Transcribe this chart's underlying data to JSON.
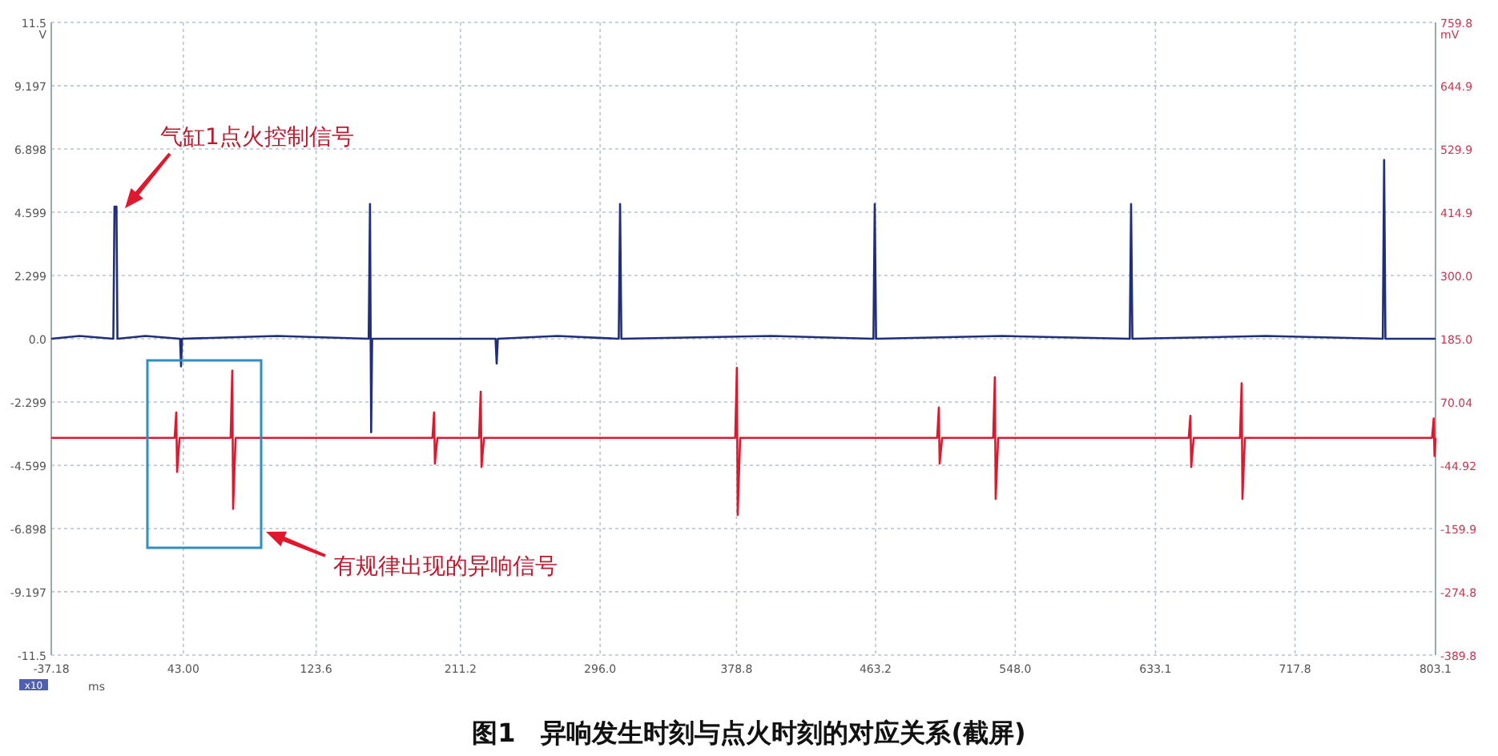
{
  "chart_data": {
    "type": "line",
    "title": "图1　异响发生时刻与点火时刻的对应关系(截屏)",
    "xlabel": "ms",
    "ylabel": "V",
    "y2label": "mV",
    "xlim": [
      -37.18,
      803.1
    ],
    "xticks": [
      -37.18,
      {
        "value": 43,
        "label": "43.00"
      },
      123.6,
      211.2,
      {
        "value": 296,
        "label": "296.0"
      },
      378.8,
      463.2,
      {
        "value": 548,
        "label": "548.0"
      },
      633.1,
      717.8,
      803.1
    ],
    "ylim": [
      -11.5,
      11.5
    ],
    "yticks": [
      -11.5,
      -9.197,
      -6.898,
      -4.599,
      -2.299,
      {
        "value": 0,
        "label": "0.0"
      },
      2.299,
      4.599,
      6.898,
      9.197,
      11.5
    ],
    "y2lim": [
      -389.8,
      759.8
    ],
    "y2ticks": [
      -389.8,
      -274.8,
      -159.9,
      -44.92,
      70.04,
      {
        "value": 185,
        "label": "185.0"
      },
      {
        "value": 300,
        "label": "300.0"
      },
      414.9,
      529.9,
      644.9,
      759.8
    ],
    "grid": true,
    "line_style": "solid",
    "marker": "none",
    "series": [
      {
        "color": "#1f2f7a",
        "axis": "y",
        "x": [
          -37.18,
          -20,
          0.5,
          1.2,
          2.4,
          3,
          20,
          41,
          41.6,
          42.2,
          100,
          155.5,
          156.3,
          157,
          157.6,
          232.5,
          233.2,
          233.9,
          270,
          307.3,
          308.1,
          308.9,
          400,
          461.9,
          462.7,
          463.5,
          540,
          617.5,
          618.3,
          619.1,
          700,
          771.1,
          771.9,
          772.7,
          803.1
        ],
        "values": [
          0,
          0.1,
          0,
          4.8,
          4.8,
          0,
          0.1,
          0,
          -1.0,
          0,
          0.1,
          0,
          4.9,
          -3.4,
          0,
          0,
          -0.9,
          0,
          0.1,
          0,
          4.9,
          0,
          0.1,
          0,
          4.9,
          0,
          0.1,
          0,
          4.9,
          0,
          0.1,
          0,
          6.5,
          0,
          0
        ]
      },
      {
        "color": "#e0182d",
        "axis": "y2",
        "x": [
          -37.18,
          37.7,
          38.7,
          39.2,
          40.7,
          71.7,
          72.7,
          73.2,
          74.7,
          194.2,
          195.2,
          195.7,
          197.2,
          222.5,
          223.5,
          224,
          225.5,
          378,
          379,
          379.5,
          381,
          500.6,
          501.6,
          502.1,
          503.6,
          534.6,
          535.6,
          536.1,
          537.6,
          653.3,
          654.3,
          654.8,
          656.3,
          684.4,
          685.4,
          685.9,
          687.4,
          801,
          802,
          802.5,
          803.1
        ],
        "values": [
          5,
          5,
          51,
          -57,
          5,
          5,
          127,
          -124,
          5,
          5,
          51,
          -42,
          5,
          5,
          89,
          -48,
          5,
          5,
          132,
          -135,
          5,
          5,
          60,
          -42,
          5,
          5,
          115,
          -106,
          5,
          5,
          45,
          -48,
          5,
          5,
          104,
          -106,
          5,
          5,
          40,
          -28,
          5
        ]
      }
    ],
    "annotations": [
      "气缸1点火控制信号",
      "有规律出现的异响信号",
      "x10"
    ]
  }
}
